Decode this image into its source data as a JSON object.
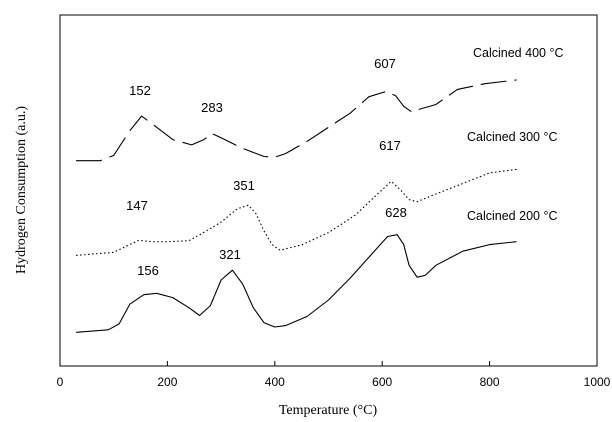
{
  "chart_data": {
    "type": "line",
    "title": "",
    "xlabel": "Temperature (°C)",
    "ylabel": "Hydrogen Consumption (a.u.)",
    "xlim": [
      0,
      1000
    ],
    "ylim": [
      0,
      100
    ],
    "x_ticks": [
      0,
      200,
      400,
      600,
      800,
      1000
    ],
    "y_ticks_shown": false,
    "grid": false,
    "legend": "none (series labelled directly on plot)",
    "series": [
      {
        "name": "Calcined 400 °C",
        "line_style": "long-dash",
        "x": [
          30,
          75,
          100,
          130,
          152,
          180,
          210,
          245,
          268,
          283,
          300,
          340,
          380,
          400,
          420,
          460,
          500,
          540,
          575,
          607,
          625,
          640,
          655,
          670,
          700,
          740,
          790,
          850
        ],
        "y": [
          58.5,
          58.5,
          60,
          67,
          71.2,
          68,
          64.5,
          63,
          64.5,
          66.2,
          65,
          62,
          59.7,
          59.5,
          60.5,
          64,
          68,
          72,
          76.7,
          78.2,
          77,
          74,
          72.4,
          73.2,
          74.5,
          78.8,
          80.4,
          81.5
        ],
        "peak_labels": [
          "152",
          "283",
          "607"
        ]
      },
      {
        "name": "Calcined 300 °C",
        "line_style": "dotted",
        "x": [
          30,
          100,
          130,
          147,
          170,
          200,
          240,
          275,
          300,
          330,
          351,
          365,
          380,
          395,
          410,
          450,
          500,
          550,
          590,
          617,
          635,
          650,
          665,
          700,
          750,
          800,
          850
        ],
        "y": [
          31.5,
          32.4,
          34.6,
          35.8,
          35.4,
          35.4,
          35.7,
          38.7,
          41,
          44.8,
          45.8,
          43.4,
          38.4,
          34.6,
          33,
          34.5,
          38,
          43,
          48.8,
          52.6,
          50,
          47.4,
          46.8,
          49,
          52,
          55,
          56
        ]
      },
      {
        "name": "Calcined 200 °C",
        "line_style": "solid",
        "x": [
          30,
          90,
          110,
          130,
          156,
          180,
          210,
          240,
          260,
          280,
          300,
          321,
          340,
          360,
          380,
          400,
          420,
          460,
          500,
          540,
          580,
          610,
          628,
          640,
          650,
          665,
          680,
          700,
          750,
          800,
          850
        ],
        "y": [
          9.6,
          10.3,
          12,
          17.6,
          20.3,
          20.7,
          19.5,
          16.6,
          14.4,
          17.2,
          24.5,
          27.3,
          23.4,
          16.6,
          12.3,
          11.1,
          11.5,
          14.1,
          18.8,
          25,
          31.8,
          36.9,
          37.4,
          34.6,
          28.7,
          25.3,
          25.8,
          28.7,
          32.7,
          34.6,
          35.4
        ]
      }
    ],
    "annotations": [
      "152",
      "283",
      "607",
      "147",
      "351",
      "617",
      "156",
      "321",
      "628"
    ]
  }
}
